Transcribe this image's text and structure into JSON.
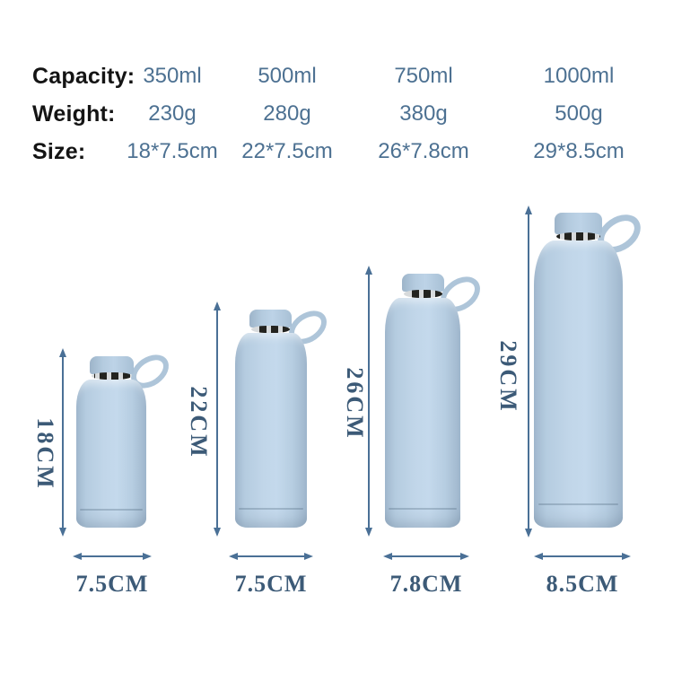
{
  "spec_table": {
    "rows": [
      {
        "label": "Capacity:",
        "values": [
          "350ml",
          "500ml",
          "750ml",
          "1000ml"
        ]
      },
      {
        "label": "Weight:",
        "values": [
          "230g",
          "280g",
          "380g",
          "500g"
        ]
      },
      {
        "label": "Size:",
        "values": [
          "18*7.5cm",
          "22*7.5cm",
          "26*7.8cm",
          "29*8.5cm"
        ]
      }
    ]
  },
  "diagram": {
    "bottles": [
      {
        "height_label": "18CM",
        "width_label": "7.5CM"
      },
      {
        "height_label": "22CM",
        "width_label": "7.5CM"
      },
      {
        "height_label": "26CM",
        "width_label": "7.8CM"
      },
      {
        "height_label": "29CM",
        "width_label": "8.5CM"
      }
    ]
  },
  "colors": {
    "spec_label": "#141414",
    "spec_value": "#4d7192",
    "dimension_text": "#3c5a77",
    "arrow": "#4a7096",
    "bottle_body": "#b8cee2",
    "bottle_band": "#23231f",
    "background": "#ffffff"
  }
}
